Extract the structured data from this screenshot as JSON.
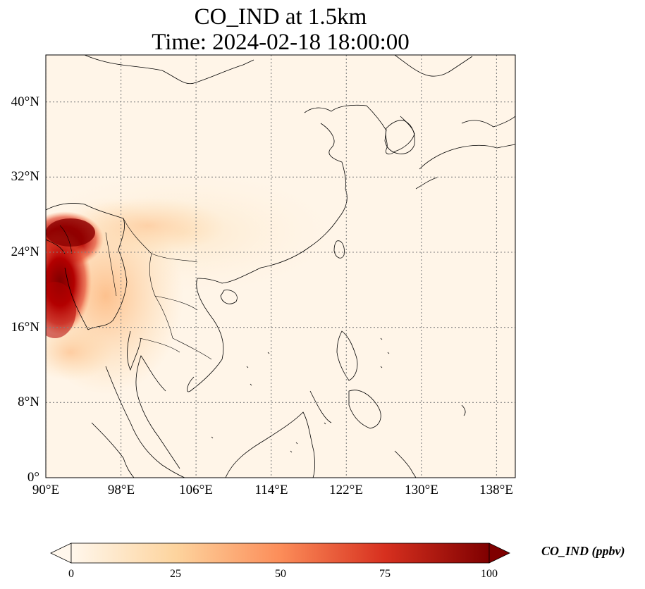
{
  "title": {
    "line1": "CO_IND at 1.5km",
    "line2": "Time: 2024-02-18 18:00:00"
  },
  "map": {
    "projection": "PlateCarree",
    "lon_range": [
      90,
      140
    ],
    "lat_range": [
      0,
      45
    ],
    "gridlines": "dotted gray",
    "y_ticks": [
      {
        "value": 0,
        "label": "0°"
      },
      {
        "value": 8,
        "label": "8°N"
      },
      {
        "value": 16,
        "label": "16°N"
      },
      {
        "value": 24,
        "label": "24°N"
      },
      {
        "value": 32,
        "label": "32°N"
      },
      {
        "value": 40,
        "label": "40°N"
      }
    ],
    "x_ticks": [
      {
        "value": 90,
        "label": "90°E"
      },
      {
        "value": 98,
        "label": "98°E"
      },
      {
        "value": 106,
        "label": "106°E"
      },
      {
        "value": 114,
        "label": "114°E"
      },
      {
        "value": 122,
        "label": "122°E"
      },
      {
        "value": 130,
        "label": "130°E"
      },
      {
        "value": 138,
        "label": "138°E"
      }
    ],
    "field_hotspot": "high CO_IND over NE India / Bangladesh / Myanmar, lower plume drifting east"
  },
  "colorbar": {
    "label": "CO_IND (ppbv)",
    "colormap": "OrRd",
    "range": [
      0,
      100
    ],
    "extend": "both",
    "ticks": [
      {
        "value": 0,
        "label": "0"
      },
      {
        "value": 25,
        "label": "25"
      },
      {
        "value": 50,
        "label": "50"
      },
      {
        "value": 75,
        "label": "75"
      },
      {
        "value": 100,
        "label": "100"
      }
    ],
    "colors": [
      "#fff7ec",
      "#fdd49e",
      "#fc8d59",
      "#d7301f",
      "#7f0000"
    ]
  }
}
